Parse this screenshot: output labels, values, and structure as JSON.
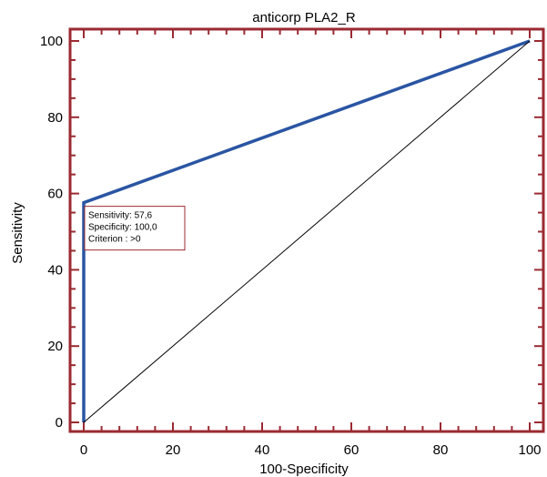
{
  "chart_data": {
    "type": "line",
    "title": "anticorp PLA2_R",
    "xlabel": "100-Specificity",
    "ylabel": "Sensitivity",
    "xlim": [
      -3,
      102
    ],
    "ylim": [
      -1.5,
      102
    ],
    "x_ticks": [
      0,
      20,
      40,
      60,
      80,
      100
    ],
    "y_ticks": [
      0,
      20,
      40,
      60,
      80,
      100
    ],
    "x_tick_labels": [
      "0",
      "20",
      "40",
      "60",
      "80",
      "100"
    ],
    "y_tick_labels": [
      "0",
      "20",
      "40",
      "60",
      "80",
      "100"
    ],
    "series": [
      {
        "x": [
          0,
          0,
          100
        ],
        "y": [
          0,
          57.6,
          100
        ],
        "color": "#2a55a3"
      },
      {
        "x": [
          0,
          100
        ],
        "y": [
          0,
          100
        ],
        "color": "#000000"
      }
    ],
    "annotation": {
      "lines": [
        "Sensitivity: 57,6",
        "Specificity: 100,0",
        "Criterion : >0"
      ],
      "x": 0,
      "y": 57.6
    },
    "frame_color": "#9b2a32",
    "grid": false
  }
}
